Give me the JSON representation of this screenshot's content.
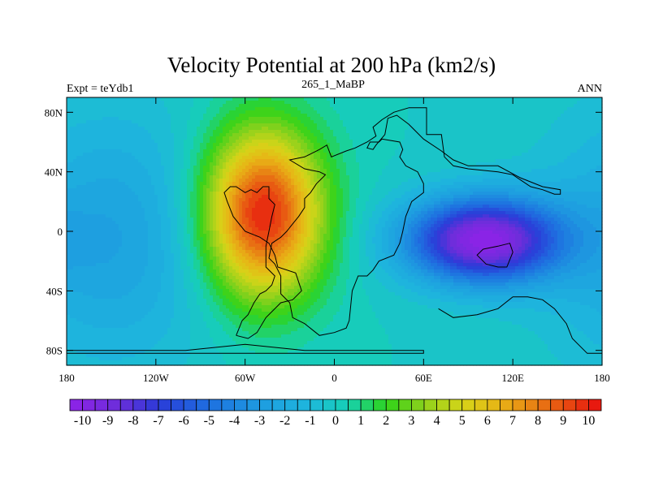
{
  "chart_data": {
    "type": "heatmap",
    "title": "Velocity Potential at 200 hPa (km2/s)",
    "left_label": "Expt = teYdb1",
    "center_label": "265_1_MaBP",
    "right_label": "ANN",
    "x_ticks": [
      "180",
      "120W",
      "60W",
      "0",
      "60E",
      "120E",
      "180"
    ],
    "x_tick_values": [
      -180,
      -120,
      -60,
      0,
      60,
      120,
      180
    ],
    "y_ticks": [
      "80N",
      "40N",
      "0",
      "40S",
      "80S"
    ],
    "y_tick_values": [
      80,
      40,
      0,
      -40,
      -80
    ],
    "xlim": [
      -180,
      180
    ],
    "ylim": [
      -90,
      90
    ],
    "colorbar": {
      "labels": [
        "-10",
        "-9",
        "-8",
        "-7",
        "-6",
        "-5",
        "-4",
        "-3",
        "-2",
        "-1",
        "0",
        "1",
        "2",
        "3",
        "4",
        "5",
        "6",
        "7",
        "8",
        "9",
        "10"
      ],
      "min": -10.5,
      "max": 10.5,
      "step": 0.5,
      "anchors": [
        [
          -10.5,
          "#8e22e8"
        ],
        [
          -8.5,
          "#6a2ed9"
        ],
        [
          -7.0,
          "#2a3bd8"
        ],
        [
          -5.0,
          "#1e6fe0"
        ],
        [
          -3.0,
          "#1e9be0"
        ],
        [
          -1.0,
          "#1eb8dc"
        ],
        [
          0.5,
          "#16d0b4"
        ],
        [
          2.0,
          "#2ed31a"
        ],
        [
          3.5,
          "#8fd11c"
        ],
        [
          5.0,
          "#d6d418"
        ],
        [
          6.5,
          "#e8b416"
        ],
        [
          8.0,
          "#e87a14"
        ],
        [
          9.5,
          "#e83a10"
        ],
        [
          10.5,
          "#e80e0e"
        ]
      ]
    },
    "features": [
      {
        "name": "divergence-center-west",
        "lon": -48,
        "lat": 12,
        "amplitude": 10.2,
        "sigma_lon": 28,
        "sigma_lat": 40
      },
      {
        "name": "convergence-center-east",
        "lon": 100,
        "lat": -6,
        "amplitude": -10.2,
        "sigma_lon": 36,
        "sigma_lat": 20
      },
      {
        "name": "background-west-pacific",
        "lon": -150,
        "lat": -5,
        "amplitude": -2.5,
        "sigma_lon": 50,
        "sigma_lat": 60
      }
    ]
  },
  "continents": {
    "north_landmass": [
      [
        50,
        83
      ],
      [
        62,
        83
      ],
      [
        62,
        65
      ],
      [
        72,
        65
      ],
      [
        74,
        50
      ],
      [
        80,
        44
      ],
      [
        90,
        42
      ],
      [
        110,
        40
      ],
      [
        120,
        38
      ],
      [
        132,
        30
      ],
      [
        140,
        28
      ],
      [
        148,
        25
      ],
      [
        152,
        25
      ],
      [
        152,
        28
      ],
      [
        140,
        30
      ],
      [
        125,
        36
      ],
      [
        110,
        44
      ],
      [
        90,
        44
      ],
      [
        80,
        48
      ],
      [
        72,
        54
      ],
      [
        60,
        62
      ],
      [
        50,
        72
      ],
      [
        42,
        78
      ],
      [
        36,
        76
      ],
      [
        34,
        65
      ],
      [
        28,
        58
      ],
      [
        26,
        55
      ],
      [
        22,
        56
      ],
      [
        24,
        60
      ],
      [
        30,
        60
      ],
      [
        32,
        62
      ],
      [
        44,
        60
      ],
      [
        46,
        55
      ],
      [
        44,
        50
      ],
      [
        48,
        44
      ],
      [
        56,
        40
      ],
      [
        60,
        32
      ],
      [
        60,
        26
      ],
      [
        52,
        20
      ],
      [
        48,
        10
      ],
      [
        46,
        0
      ],
      [
        44,
        -8
      ],
      [
        40,
        -16
      ],
      [
        30,
        -20
      ],
      [
        26,
        -26
      ],
      [
        22,
        -30
      ],
      [
        16,
        -30
      ],
      [
        12,
        -40
      ],
      [
        10,
        -60
      ],
      [
        8,
        -65
      ],
      [
        0,
        -68
      ],
      [
        -10,
        -70
      ],
      [
        -20,
        -62
      ],
      [
        -28,
        -58
      ],
      [
        -30,
        -48
      ],
      [
        -36,
        -42
      ],
      [
        -36,
        -30
      ],
      [
        -40,
        -22
      ],
      [
        -44,
        -18
      ],
      [
        -42,
        -8
      ],
      [
        -36,
        -4
      ],
      [
        -32,
        0
      ],
      [
        -28,
        5
      ],
      [
        -24,
        10
      ],
      [
        -20,
        16
      ],
      [
        -20,
        22
      ],
      [
        -16,
        26
      ],
      [
        -12,
        32
      ],
      [
        -8,
        36
      ],
      [
        -6,
        38
      ],
      [
        -10,
        40
      ],
      [
        -20,
        42
      ],
      [
        -30,
        48
      ],
      [
        -20,
        50
      ],
      [
        -10,
        55
      ],
      [
        -5,
        58
      ],
      [
        -2,
        50
      ],
      [
        8,
        54
      ],
      [
        14,
        56
      ],
      [
        22,
        60
      ],
      [
        28,
        64
      ],
      [
        26,
        70
      ],
      [
        32,
        75
      ],
      [
        40,
        80
      ],
      [
        50,
        83
      ]
    ],
    "south_island": [
      [
        -66,
        -70
      ],
      [
        -58,
        -72
      ],
      [
        -52,
        -68
      ],
      [
        -46,
        -58
      ],
      [
        -36,
        -48
      ],
      [
        -28,
        -46
      ],
      [
        -22,
        -40
      ],
      [
        -26,
        -28
      ],
      [
        -38,
        -24
      ],
      [
        -40,
        -16
      ],
      [
        -44,
        -8
      ],
      [
        -50,
        -4
      ],
      [
        -60,
        0
      ],
      [
        -68,
        10
      ],
      [
        -72,
        20
      ],
      [
        -74,
        26
      ],
      [
        -70,
        30
      ],
      [
        -66,
        30
      ],
      [
        -60,
        26
      ],
      [
        -56,
        28
      ],
      [
        -52,
        26
      ],
      [
        -48,
        30
      ],
      [
        -44,
        30
      ],
      [
        -44,
        22
      ],
      [
        -40,
        18
      ],
      [
        -42,
        10
      ],
      [
        -44,
        0
      ],
      [
        -46,
        -10
      ],
      [
        -46,
        -24
      ],
      [
        -40,
        -30
      ],
      [
        -42,
        -36
      ],
      [
        -46,
        -40
      ],
      [
        -50,
        -42
      ],
      [
        -54,
        -48
      ],
      [
        -58,
        -56
      ],
      [
        -62,
        -60
      ],
      [
        -66,
        -70
      ]
    ],
    "east_inner": [
      [
        100,
        -12
      ],
      [
        110,
        -10
      ],
      [
        118,
        -8
      ],
      [
        120,
        -14
      ],
      [
        116,
        -24
      ],
      [
        110,
        -24
      ],
      [
        102,
        -22
      ],
      [
        96,
        -16
      ],
      [
        100,
        -12
      ]
    ],
    "antarctic_line": [
      [
        -180,
        -80
      ],
      [
        -100,
        -80
      ],
      [
        -60,
        -76
      ],
      [
        -20,
        -80
      ],
      [
        60,
        -80
      ],
      [
        60,
        -82
      ],
      [
        -180,
        -82
      ]
    ],
    "east_south_coast": [
      [
        70,
        -52
      ],
      [
        80,
        -58
      ],
      [
        96,
        -56
      ],
      [
        110,
        -52
      ],
      [
        120,
        -44
      ],
      [
        130,
        -44
      ],
      [
        140,
        -46
      ],
      [
        148,
        -52
      ],
      [
        156,
        -62
      ],
      [
        160,
        -72
      ],
      [
        164,
        -76
      ],
      [
        170,
        -82
      ],
      [
        180,
        -82
      ]
    ]
  }
}
